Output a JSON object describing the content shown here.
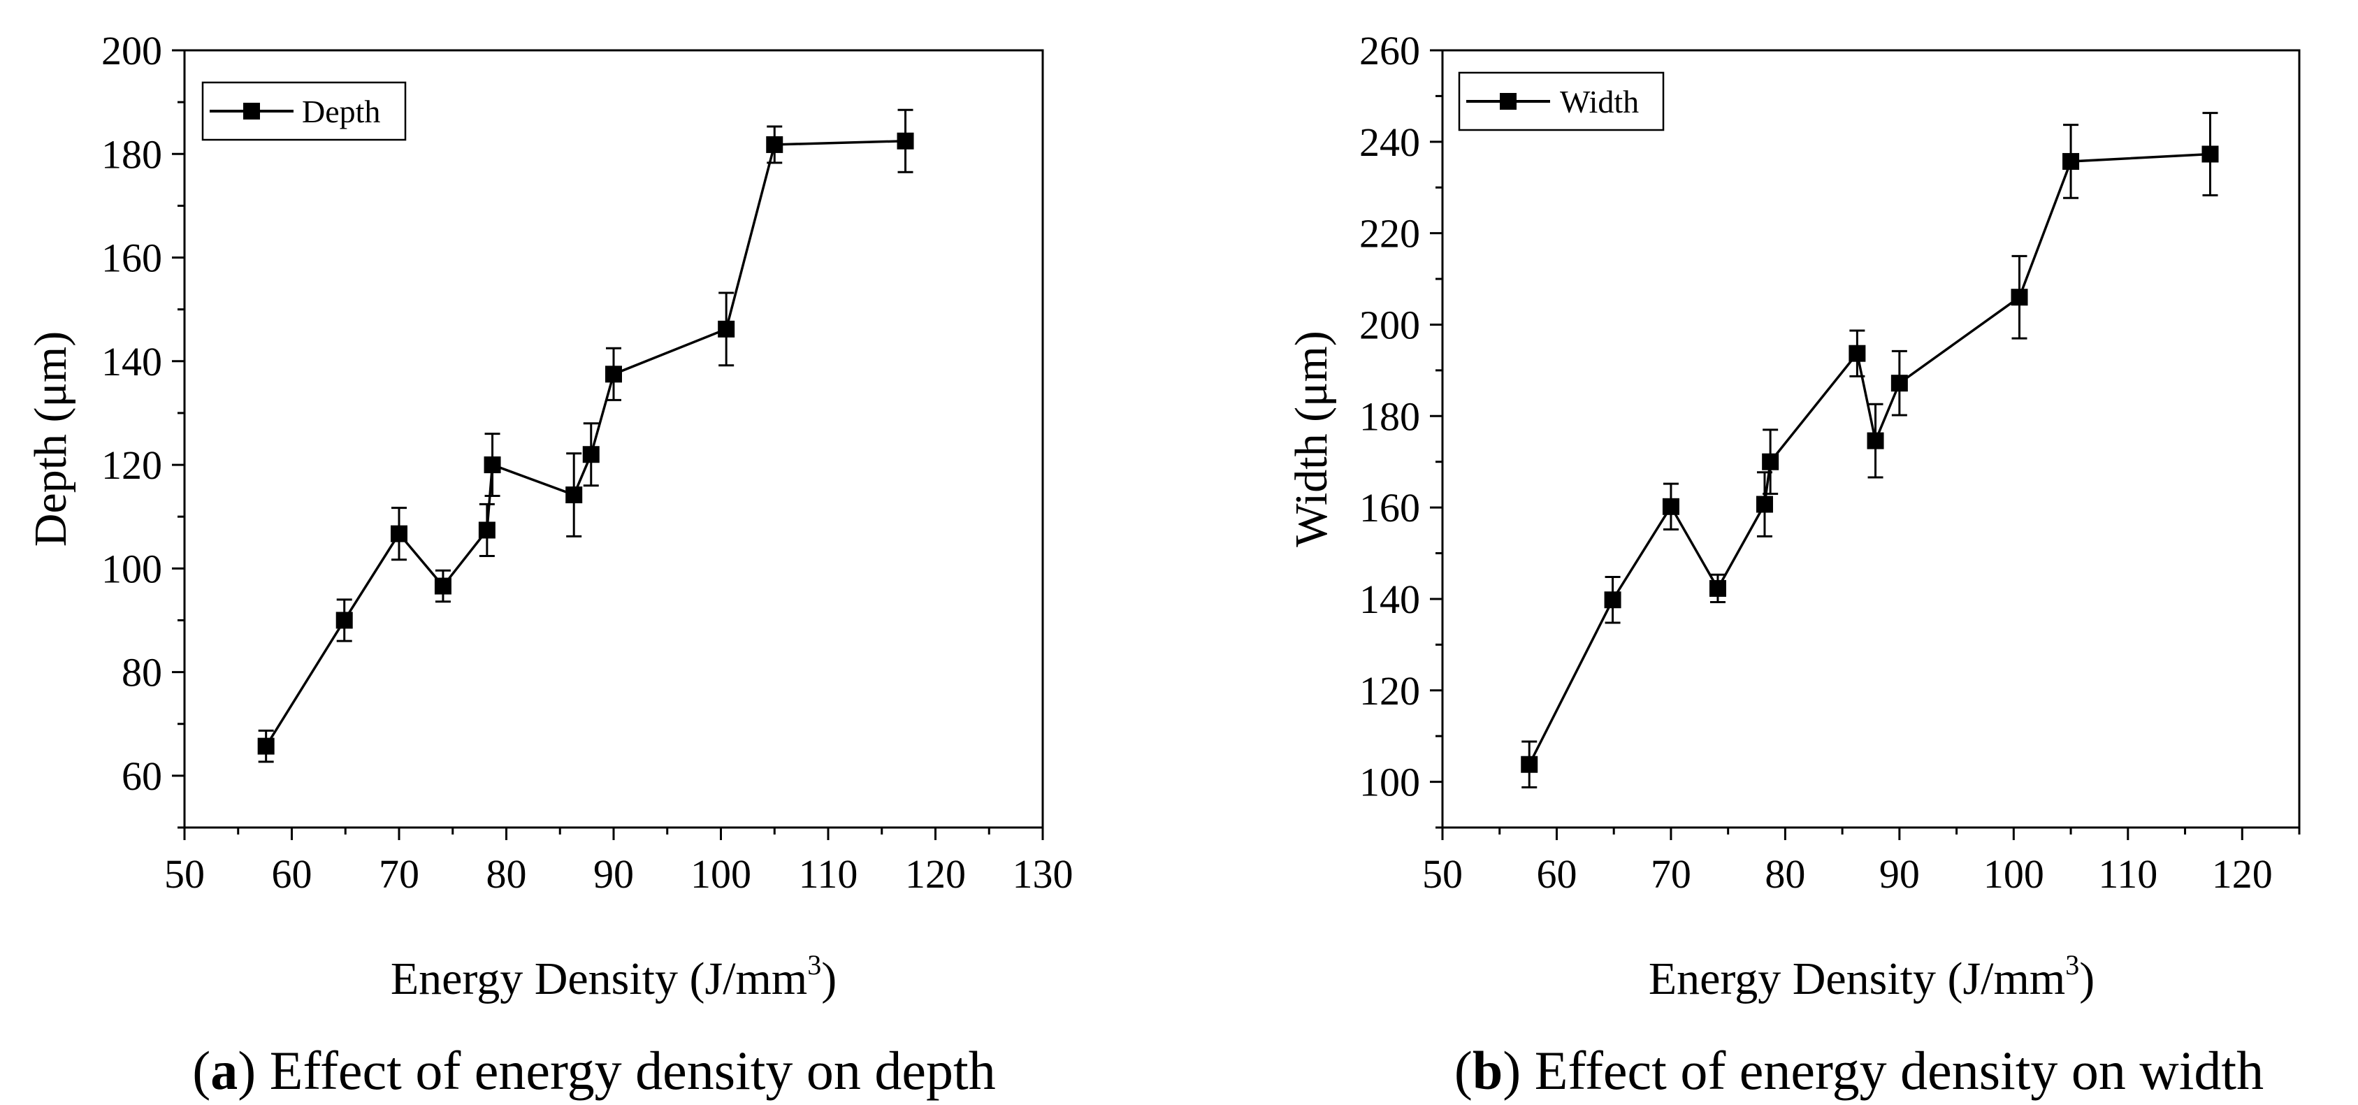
{
  "charts": [
    {
      "id": "a",
      "caption_letter": "a",
      "caption_text": " Effect of energy density on depth",
      "legend_label": "Depth",
      "xlabel_main": "Energy Density (J/mm",
      "xlabel_sup": "3",
      "xlabel_close": ")",
      "ylabel": "Depth (μm)",
      "xticks": [
        "50",
        "60",
        "70",
        "80",
        "90",
        "100",
        "110",
        "120",
        "130"
      ],
      "yticks": [
        "60",
        "80",
        "100",
        "120",
        "140",
        "160",
        "180",
        "200"
      ]
    },
    {
      "id": "b",
      "caption_letter": "b",
      "caption_text": " Effect of energy density on width",
      "legend_label": "Width",
      "xlabel_main": "Energy Density (J/mm",
      "xlabel_sup": "3",
      "xlabel_close": ")",
      "ylabel": "Width (μm)",
      "xticks": [
        "50",
        "60",
        "70",
        "80",
        "90",
        "100",
        "110",
        "120"
      ],
      "yticks": [
        "100",
        "120",
        "140",
        "160",
        "180",
        "200",
        "220",
        "240",
        "260"
      ]
    }
  ],
  "chart_data": [
    {
      "type": "line",
      "xlabel": "Energy Density (J/mm3)",
      "ylabel": "Depth (μm)",
      "xlim": [
        50,
        130
      ],
      "ylim": [
        50,
        200
      ],
      "grid": false,
      "legend_position": "top-left",
      "markers": "square",
      "series": [
        {
          "name": "Depth",
          "x": [
            57.6,
            64.9,
            70.0,
            74.1,
            78.2,
            78.7,
            86.3,
            87.9,
            90.0,
            100.5,
            105.0,
            117.2
          ],
          "y": [
            65.7,
            90.0,
            106.7,
            96.6,
            107.4,
            120.0,
            114.2,
            122.0,
            137.5,
            146.2,
            181.8,
            182.5
          ],
          "error": [
            3.0,
            4.0,
            5.0,
            3.0,
            5.0,
            6.0,
            8.0,
            6.0,
            5.0,
            7.0,
            3.5,
            6.0
          ]
        }
      ]
    },
    {
      "type": "line",
      "xlabel": "Energy Density (J/mm3)",
      "ylabel": "Width (μm)",
      "xlim": [
        50,
        125
      ],
      "ylim": [
        90,
        260
      ],
      "grid": false,
      "legend_position": "top-left",
      "markers": "square",
      "series": [
        {
          "name": "Width",
          "x": [
            57.6,
            64.9,
            70.0,
            74.1,
            78.2,
            78.7,
            86.3,
            87.9,
            90.0,
            100.5,
            105.0,
            117.2
          ],
          "y": [
            103.8,
            139.8,
            160.2,
            142.3,
            160.7,
            170.0,
            193.7,
            174.6,
            187.2,
            206.0,
            235.7,
            237.3
          ],
          "error": [
            5.0,
            5.0,
            5.0,
            3.0,
            7.0,
            7.0,
            5.0,
            8.0,
            7.0,
            9.0,
            8.0,
            9.0
          ]
        }
      ]
    }
  ]
}
